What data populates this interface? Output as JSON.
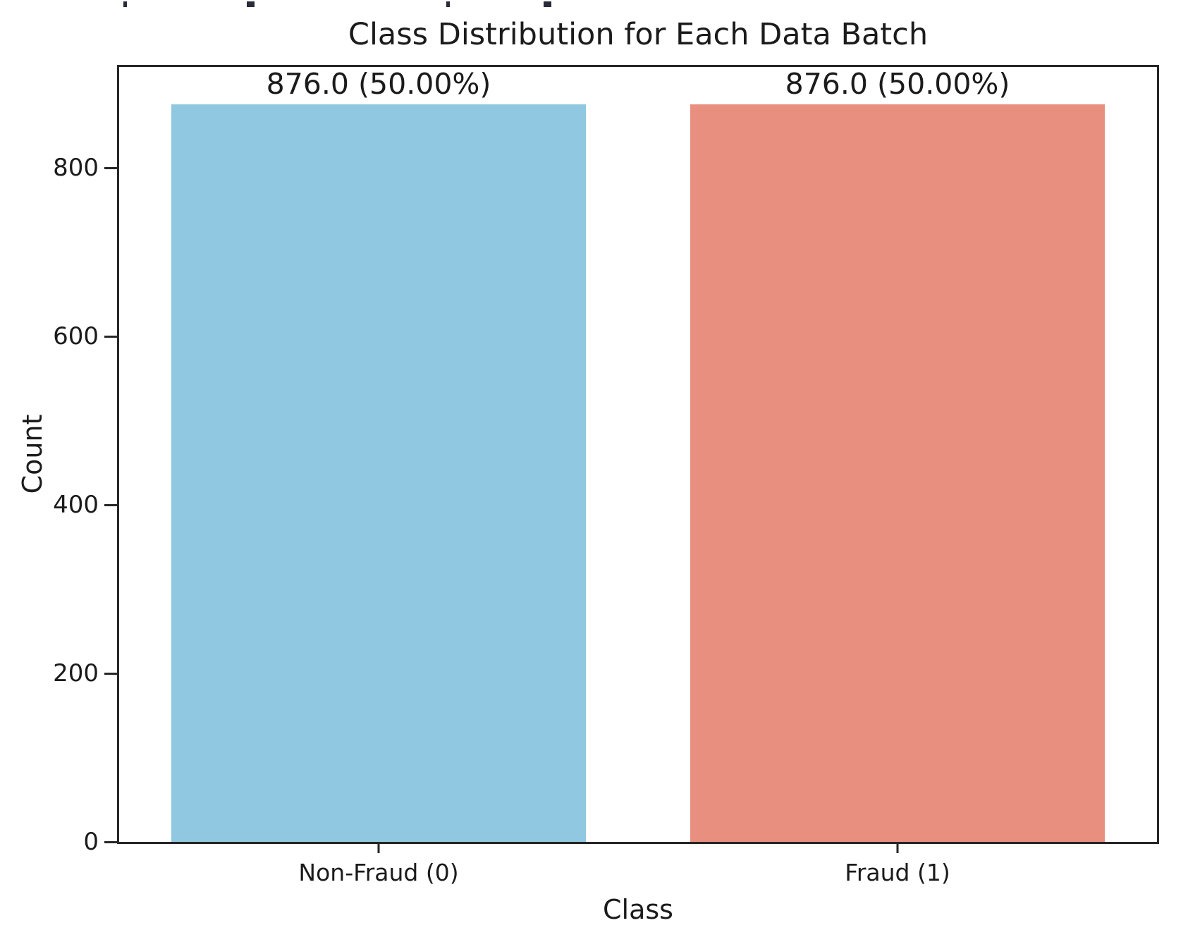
{
  "figure": {
    "background": "#ffffff",
    "spine_color": "#262626",
    "text_color": "#1b1b1b"
  },
  "chart_data": {
    "type": "bar",
    "title": "Class Distribution for Each Data Batch",
    "xlabel": "Class",
    "ylabel": "Count",
    "categories": [
      "Non-Fraud (0)",
      "Fraud (1)"
    ],
    "values": [
      876,
      876
    ],
    "bar_labels": [
      "876.0 (50.00%)",
      "876.0 (50.00%)"
    ],
    "bar_colors": [
      "#8FC8E0",
      "#E98F80"
    ],
    "yticks": [
      0,
      200,
      400,
      600,
      800
    ],
    "ylim": [
      0,
      920
    ],
    "bar_width_fraction": 0.8,
    "grid": false,
    "legend": null
  }
}
